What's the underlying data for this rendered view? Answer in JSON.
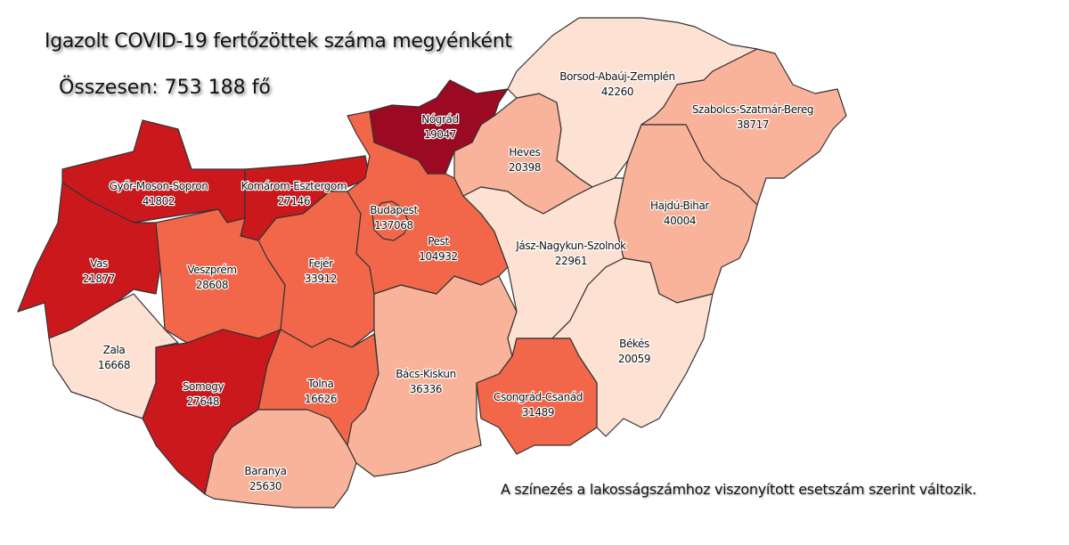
{
  "title": "Igazolt COVID-19 fertőzöttek száma megyénként",
  "total": "Összesen: 753 188 fő",
  "note": "A színezés a lakosságszámhoz viszonyított esetszám szerint változik.",
  "colors": {
    "darkest": "#9b0a22",
    "dark": "#cb181d",
    "medium": "#f26749",
    "light": "#f9b39a",
    "lightest": "#fde1d3"
  },
  "counties": [
    {
      "name": "Győr-Moson-Sopron",
      "value": "41802",
      "shade": "dark"
    },
    {
      "name": "Komárom-Esztergom",
      "value": "27146",
      "shade": "dark"
    },
    {
      "name": "Vas",
      "value": "21877",
      "shade": "dark"
    },
    {
      "name": "Zala",
      "value": "16668",
      "shade": "lightest"
    },
    {
      "name": "Veszprém",
      "value": "28608",
      "shade": "medium"
    },
    {
      "name": "Somogy",
      "value": "27648",
      "shade": "dark"
    },
    {
      "name": "Fejér",
      "value": "33912",
      "shade": "medium"
    },
    {
      "name": "Tolna",
      "value": "16626",
      "shade": "medium"
    },
    {
      "name": "Baranya",
      "value": "25630",
      "shade": "light"
    },
    {
      "name": "Bács-Kiskun",
      "value": "36336",
      "shade": "light"
    },
    {
      "name": "Pest",
      "value": "104932",
      "shade": "medium"
    },
    {
      "name": "Budapest",
      "value": "137068",
      "shade": "medium"
    },
    {
      "name": "Nógrád",
      "value": "19047",
      "shade": "darkest"
    },
    {
      "name": "Heves",
      "value": "20398",
      "shade": "light"
    },
    {
      "name": "Borsod-Abaúj-Zemplén",
      "value": "42260",
      "shade": "lightest"
    },
    {
      "name": "Szabolcs-Szatmár-Bereg",
      "value": "38717",
      "shade": "light"
    },
    {
      "name": "Hajdú-Bihar",
      "value": "40004",
      "shade": "light"
    },
    {
      "name": "Jász-Nagykun-Szolnok",
      "value": "22961",
      "shade": "lightest"
    },
    {
      "name": "Békés",
      "value": "20059",
      "shade": "lightest"
    },
    {
      "name": "Csongrád-Csanád",
      "value": "31489",
      "shade": "medium"
    }
  ]
}
